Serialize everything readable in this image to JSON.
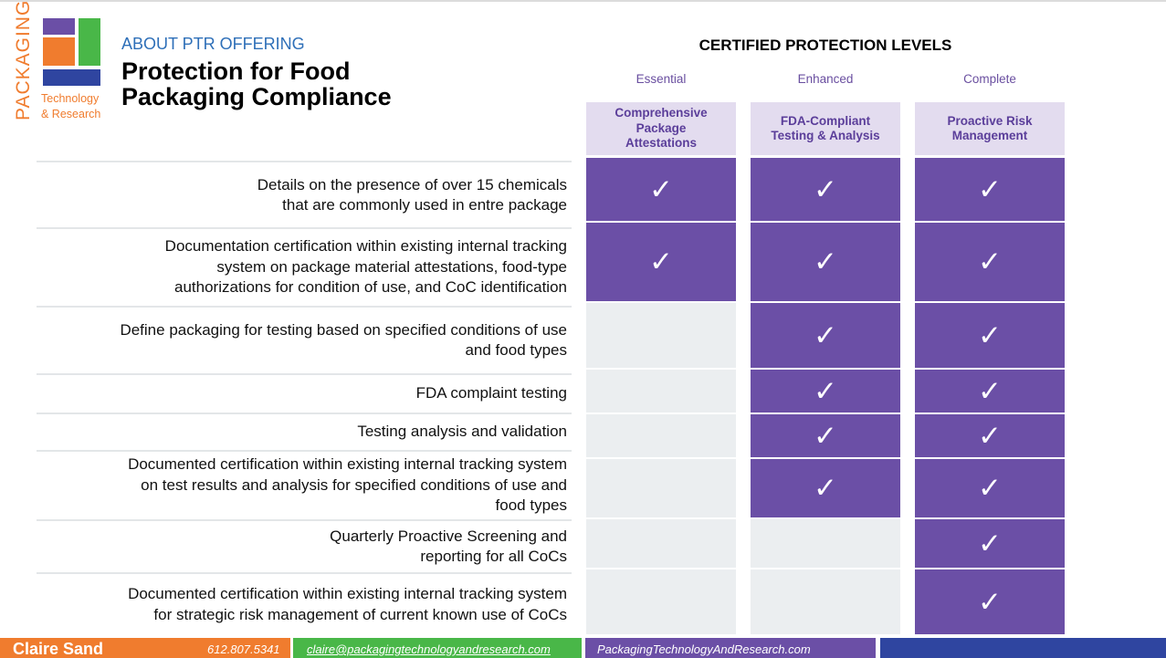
{
  "logo": {
    "vertical_text": "PACKAGING",
    "line1": "Technology",
    "line2": "& Research",
    "colors": {
      "purple": "#6b4fa6",
      "green": "#49b748",
      "orange": "#f07c2e",
      "blue": "#2f45a0"
    }
  },
  "header": {
    "kicker": "ABOUT PTR OFFERING",
    "title_line1": "Protection for Food",
    "title_line2": "Packaging Compliance"
  },
  "levels": {
    "heading": "CERTIFIED PROTECTION LEVELS",
    "columns": [
      {
        "name": "Essential",
        "header_line1": "Comprehensive",
        "header_line2": "Package",
        "header_line3": "Attestations"
      },
      {
        "name": "Enhanced",
        "header_line1": "FDA-Compliant",
        "header_line2": "Testing & Analysis",
        "header_line3": ""
      },
      {
        "name": "Complete",
        "header_line1": "Proactive Risk",
        "header_line2": "Management",
        "header_line3": ""
      }
    ]
  },
  "check_glyph": "✓",
  "rows": [
    {
      "line1": "Details on the presence of over 15 chemicals",
      "line2": "that are commonly used in entre package",
      "line3": "",
      "checks": [
        true,
        true,
        true
      ]
    },
    {
      "line1": "Documentation certification within existing internal tracking",
      "line2": "system on package material attestations, food-type",
      "line3": "authorizations for condition of use, and CoC identification",
      "checks": [
        true,
        true,
        true
      ]
    },
    {
      "line1": "Define packaging for testing based on specified conditions of use",
      "line2": "and food types",
      "line3": "",
      "checks": [
        false,
        true,
        true
      ]
    },
    {
      "line1": "FDA complaint testing",
      "line2": "",
      "line3": "",
      "checks": [
        false,
        true,
        true
      ]
    },
    {
      "line1": "Testing analysis and validation",
      "line2": "",
      "line3": "",
      "checks": [
        false,
        true,
        true
      ]
    },
    {
      "line1": "Documented certification within existing internal tracking system",
      "line2": "on test results and analysis for specified conditions of use and",
      "line3": "food types",
      "checks": [
        false,
        true,
        true
      ]
    },
    {
      "line1": "Quarterly Proactive Screening and",
      "line2": "reporting for all CoCs",
      "line3": "",
      "checks": [
        false,
        false,
        true
      ]
    },
    {
      "line1": "Documented certification within existing internal tracking system",
      "line2": "for  strategic risk management of current known use of CoCs",
      "line3": "",
      "checks": [
        false,
        false,
        true
      ]
    }
  ],
  "footer": {
    "name": "Claire Sand",
    "phone": "612.807.5341",
    "email": "claire@packagingtechnologyandresearch.com",
    "website": "PackagingTechnologyAndResearch.com",
    "colors": {
      "orange": "#f07c2e",
      "green": "#49b748",
      "purple": "#6b4fa6",
      "blue": "#2f45a0"
    }
  }
}
